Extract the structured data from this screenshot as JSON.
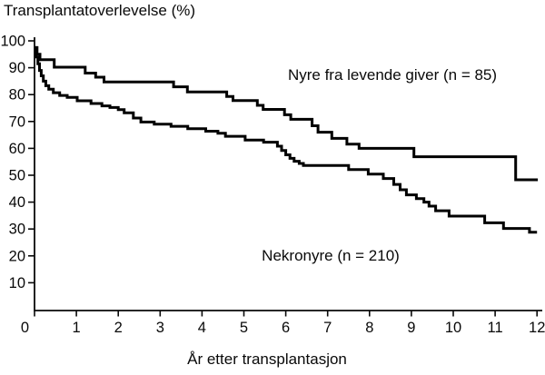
{
  "title": "Transplantatoverlevelse (%)",
  "chart_data": {
    "type": "line",
    "subtype": "kaplan-meier-step-survival",
    "title": "Transplantatoverlevelse (%)",
    "xlabel": "År etter transplantasjon",
    "ylabel": "Transplantatoverlevelse (%)",
    "xlim": [
      0,
      12
    ],
    "ylim": [
      0,
      100
    ],
    "xticks": [
      0,
      1,
      2,
      3,
      4,
      5,
      6,
      7,
      8,
      9,
      10,
      11,
      12
    ],
    "yticks": [
      100,
      90,
      80,
      70,
      60,
      50,
      40,
      30,
      20,
      10
    ],
    "grid": false,
    "legend_position": "annotations-inside-plot",
    "line_color": "#000000",
    "series": [
      {
        "name": "Nyre fra levende giver (n = 85)",
        "n": 85,
        "points": [
          [
            0,
            97.5
          ],
          [
            0.06,
            95.0
          ],
          [
            0.13,
            93.0
          ],
          [
            0.47,
            90.2
          ],
          [
            1.21,
            88.0
          ],
          [
            1.46,
            86.5
          ],
          [
            1.66,
            84.7
          ],
          [
            3.32,
            82.9
          ],
          [
            3.65,
            81.0
          ],
          [
            4.59,
            79.3
          ],
          [
            4.74,
            77.8
          ],
          [
            5.32,
            76.0
          ],
          [
            5.46,
            74.5
          ],
          [
            5.97,
            72.5
          ],
          [
            6.12,
            70.8
          ],
          [
            6.63,
            68.4
          ],
          [
            6.77,
            66.0
          ],
          [
            7.1,
            63.7
          ],
          [
            7.46,
            61.6
          ],
          [
            7.75,
            60.0
          ],
          [
            9.06,
            56.9
          ],
          [
            11.49,
            48.3
          ],
          [
            12.02,
            48.3
          ]
        ]
      },
      {
        "name": "Nekronyre (n = 210)",
        "n": 210,
        "points": [
          [
            0,
            97.5
          ],
          [
            0.04,
            94.0
          ],
          [
            0.08,
            91.5
          ],
          [
            0.12,
            89.0
          ],
          [
            0.16,
            87.0
          ],
          [
            0.21,
            85.0
          ],
          [
            0.27,
            83.3
          ],
          [
            0.34,
            82.0
          ],
          [
            0.45,
            80.7
          ],
          [
            0.6,
            79.7
          ],
          [
            0.78,
            79.0
          ],
          [
            1.02,
            77.7
          ],
          [
            1.35,
            76.7
          ],
          [
            1.61,
            75.8
          ],
          [
            1.8,
            75.2
          ],
          [
            2.0,
            74.4
          ],
          [
            2.14,
            73.2
          ],
          [
            2.36,
            71.3
          ],
          [
            2.54,
            69.8
          ],
          [
            2.86,
            69.0
          ],
          [
            3.26,
            68.2
          ],
          [
            3.66,
            67.3
          ],
          [
            4.09,
            66.4
          ],
          [
            4.38,
            65.6
          ],
          [
            4.56,
            64.5
          ],
          [
            5.03,
            63.1
          ],
          [
            5.47,
            62.3
          ],
          [
            5.8,
            60.8
          ],
          [
            5.9,
            59.2
          ],
          [
            6.0,
            57.6
          ],
          [
            6.1,
            56.3
          ],
          [
            6.2,
            55.2
          ],
          [
            6.32,
            54.4
          ],
          [
            6.42,
            53.6
          ],
          [
            7.5,
            52.1
          ],
          [
            7.97,
            50.4
          ],
          [
            8.33,
            48.8
          ],
          [
            8.58,
            46.6
          ],
          [
            8.73,
            44.6
          ],
          [
            8.88,
            42.7
          ],
          [
            9.12,
            41.3
          ],
          [
            9.3,
            40.0
          ],
          [
            9.42,
            38.5
          ],
          [
            9.58,
            36.8
          ],
          [
            9.9,
            34.8
          ],
          [
            10.75,
            32.3
          ],
          [
            11.2,
            30.2
          ],
          [
            11.82,
            28.8
          ],
          [
            12.0,
            28.8
          ]
        ]
      }
    ]
  },
  "colors": {
    "background": "#ffffff",
    "axis": "#090909",
    "curve": "#000000",
    "text": "#090909"
  }
}
